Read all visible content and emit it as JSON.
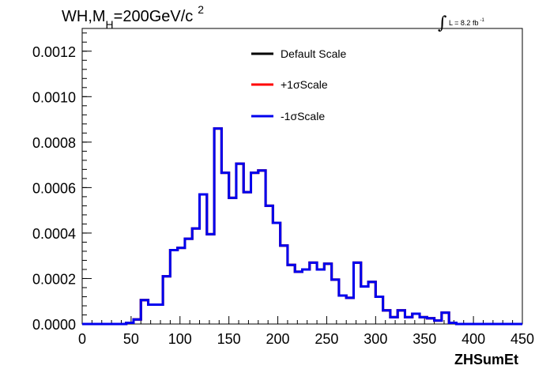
{
  "chart_data": {
    "type": "line",
    "title_main": "WH,M",
    "title_sub": "H",
    "title_rest": "=200GeV/c",
    "title_sup": "2",
    "lumi_text": "L = 8.2 fb",
    "lumi_sup": "-1",
    "xlabel": "ZHSumEt",
    "ylabel": "",
    "xlim": [
      0,
      450
    ],
    "ylim": [
      0,
      0.0013
    ],
    "x_ticks": [
      "0",
      "50",
      "100",
      "150",
      "200",
      "250",
      "300",
      "350",
      "400",
      "450"
    ],
    "y_ticks": [
      "0.0000",
      "0.0002",
      "0.0004",
      "0.0006",
      "0.0008",
      "0.0010",
      "0.0012"
    ],
    "y_tick_values": [
      0,
      0.0002,
      0.0004,
      0.0006,
      0.0008,
      0.001,
      0.0012
    ],
    "bin_edges": [
      0,
      7.5,
      15,
      22.5,
      30,
      37.5,
      45,
      52.5,
      60,
      67.5,
      75,
      82.5,
      90,
      97.5,
      105,
      112.5,
      120,
      127.5,
      135,
      142.5,
      150,
      157.5,
      165,
      172.5,
      180,
      187.5,
      195,
      202.5,
      210,
      217.5,
      225,
      232.5,
      240,
      247.5,
      255,
      262.5,
      270,
      277.5,
      285,
      292.5,
      300,
      307.5,
      315,
      322.5,
      330,
      337.5,
      345,
      352.5,
      360,
      367.5,
      375,
      382.5,
      390,
      397.5,
      405,
      412.5,
      420,
      427.5,
      435,
      442.5,
      450
    ],
    "series": [
      {
        "name": "Default Scale",
        "color": "#000000",
        "values": [
          0,
          0,
          0,
          0,
          0,
          0,
          5e-06,
          2e-05,
          0.000105,
          8.5e-05,
          8.5e-05,
          0.00021,
          0.000325,
          0.000335,
          0.000375,
          0.00042,
          0.00057,
          0.000395,
          0.00086,
          0.000665,
          0.000555,
          0.000705,
          0.00058,
          0.000665,
          0.000675,
          0.00052,
          0.000445,
          0.000345,
          0.00026,
          0.00023,
          0.00024,
          0.00027,
          0.00024,
          0.000265,
          0.000195,
          0.000125,
          0.000115,
          0.00027,
          0.000165,
          0.000185,
          0.00012,
          6e-05,
          3e-05,
          6e-05,
          3e-05,
          4.5e-05,
          3e-05,
          2.5e-05,
          1.5e-05,
          5e-05,
          5e-06,
          0,
          0,
          0,
          0,
          0,
          0,
          0,
          0,
          0
        ]
      },
      {
        "name": "+1σScale",
        "color": "#ff0000",
        "values": [
          0,
          0,
          0,
          0,
          0,
          0,
          5e-06,
          2e-05,
          0.000105,
          8.5e-05,
          8.5e-05,
          0.00021,
          0.000325,
          0.000335,
          0.000375,
          0.00042,
          0.00057,
          0.000395,
          0.00086,
          0.000665,
          0.000555,
          0.000705,
          0.00058,
          0.000665,
          0.000675,
          0.00052,
          0.000445,
          0.000345,
          0.00026,
          0.00023,
          0.00024,
          0.00027,
          0.00024,
          0.000265,
          0.000195,
          0.000125,
          0.000115,
          0.00027,
          0.000165,
          0.000185,
          0.00012,
          6e-05,
          3e-05,
          6e-05,
          3e-05,
          4.5e-05,
          3e-05,
          2.5e-05,
          1.5e-05,
          5e-05,
          5e-06,
          0,
          0,
          0,
          0,
          0,
          0,
          0,
          0,
          0
        ]
      },
      {
        "name": "-1σScale",
        "color": "#0000ee",
        "values": [
          0,
          0,
          0,
          0,
          0,
          0,
          5e-06,
          2e-05,
          0.000105,
          8.5e-05,
          8.5e-05,
          0.00021,
          0.000325,
          0.000335,
          0.000375,
          0.00042,
          0.00057,
          0.000395,
          0.00086,
          0.000665,
          0.000555,
          0.000705,
          0.00058,
          0.000665,
          0.000675,
          0.00052,
          0.000445,
          0.000345,
          0.00026,
          0.00023,
          0.00024,
          0.00027,
          0.00024,
          0.000265,
          0.000195,
          0.000125,
          0.000115,
          0.00027,
          0.000165,
          0.000185,
          0.00012,
          6e-05,
          3e-05,
          6e-05,
          3e-05,
          4.5e-05,
          3e-05,
          2.5e-05,
          1.5e-05,
          5e-05,
          5e-06,
          0,
          0,
          0,
          0,
          0,
          0,
          0,
          0,
          0
        ]
      }
    ],
    "legend_position": "top-center",
    "grid": false
  }
}
